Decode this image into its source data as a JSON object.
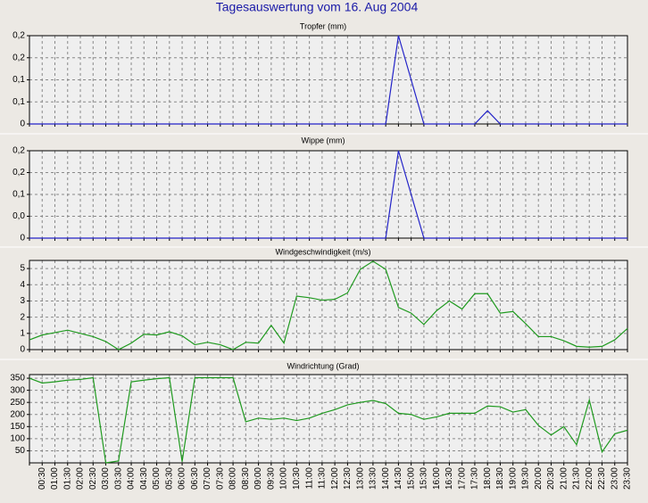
{
  "title": "Tagesauswertung vom 16. Aug 2004",
  "chart_data": [
    {
      "type": "line",
      "title": "Tropfer (mm)",
      "color": "#2323c8",
      "values": [
        0,
        0,
        0,
        0,
        0,
        0,
        0,
        0,
        0,
        0,
        0,
        0,
        0,
        0,
        0,
        0,
        0,
        0,
        0,
        0,
        0,
        0,
        0,
        0,
        0,
        0,
        0,
        0,
        0,
        0.2,
        0.1,
        0,
        0,
        0,
        0,
        0,
        0.03,
        0,
        0,
        0,
        0,
        0,
        0,
        0,
        0,
        0,
        0,
        0
      ],
      "ylim": [
        0,
        0.2
      ],
      "yticks": [
        0,
        {
          "value": 0.05,
          "label": "0,1"
        },
        {
          "value": 0.1,
          "label": "0,1"
        },
        {
          "value": 0.15,
          "label": "0,2"
        },
        {
          "value": 0.2,
          "label": "0,2"
        }
      ],
      "grid": true
    },
    {
      "type": "line",
      "title": "Wippe (mm)",
      "color": "#2323c8",
      "values": [
        0,
        0,
        0,
        0,
        0,
        0,
        0,
        0,
        0,
        0,
        0,
        0,
        0,
        0,
        0,
        0,
        0,
        0,
        0,
        0,
        0,
        0,
        0,
        0,
        0,
        0,
        0,
        0,
        0,
        0.2,
        0.1,
        0,
        0,
        0,
        0,
        0,
        0,
        0,
        0,
        0,
        0,
        0,
        0,
        0,
        0,
        0,
        0,
        0
      ],
      "ylim": [
        0,
        0.2
      ],
      "yticks": [
        0,
        {
          "value": 0.05,
          "label": "0,0"
        },
        {
          "value": 0.1,
          "label": "0,1"
        },
        {
          "value": 0.15,
          "label": "0,2"
        },
        {
          "value": 0.2,
          "label": "0,2"
        }
      ],
      "grid": true
    },
    {
      "type": "line",
      "title": "Windgeschwindigkeit (m/s)",
      "color": "#1f9a1f",
      "values": [
        0.6,
        0.9,
        1.05,
        1.2,
        1.0,
        0.8,
        0.5,
        0,
        0.4,
        0.95,
        0.9,
        1.1,
        0.85,
        0.3,
        0.45,
        0.3,
        0,
        0.45,
        0.4,
        1.5,
        0.4,
        3.3,
        3.2,
        3.05,
        3.1,
        3.5,
        4.95,
        5.45,
        4.95,
        2.6,
        2.25,
        1.55,
        2.4,
        3.0,
        2.5,
        3.45,
        3.45,
        2.25,
        2.35,
        1.6,
        0.8,
        0.8,
        0.55,
        0.2,
        0.15,
        0.2,
        0.6,
        1.3
      ],
      "ylim": [
        0,
        5.5
      ],
      "yticks": [
        0,
        1,
        2,
        3,
        4,
        5
      ],
      "grid": true
    },
    {
      "type": "line",
      "title": "Windrichtung (Grad)",
      "color": "#1f9a1f",
      "values": [
        350,
        330,
        335,
        342,
        345,
        352,
        0,
        8,
        335,
        342,
        348,
        352,
        5,
        352,
        352,
        352,
        352,
        170,
        185,
        180,
        185,
        175,
        185,
        205,
        220,
        240,
        250,
        258,
        245,
        205,
        200,
        180,
        190,
        205,
        205,
        205,
        235,
        232,
        210,
        220,
        155,
        115,
        150,
        75,
        260,
        45,
        120,
        135
      ],
      "ylim": [
        0,
        365
      ],
      "yticks": [
        50,
        100,
        150,
        200,
        250,
        300,
        350
      ],
      "grid": true,
      "categories": [
        null,
        "00:30",
        "01:00",
        "01:30",
        "02:00",
        "02:30",
        "03:00",
        "03:30",
        "04:00",
        "04:30",
        "05:00",
        "05:30",
        "06:00",
        "06:30",
        "07:00",
        "07:30",
        "08:00",
        "08:30",
        "09:00",
        "09:30",
        "10:00",
        "10:30",
        "11:00",
        "11:30",
        "12:00",
        "12:30",
        "13:00",
        "13:30",
        "14:00",
        "14:30",
        "15:00",
        "15:30",
        "16:00",
        "16:30",
        "17:00",
        "17:30",
        "18:00",
        "18:30",
        "19:00",
        "19:30",
        "20:00",
        "20:30",
        "21:00",
        "21:30",
        "22:00",
        "22:30",
        "23:00",
        "23:30"
      ]
    }
  ]
}
